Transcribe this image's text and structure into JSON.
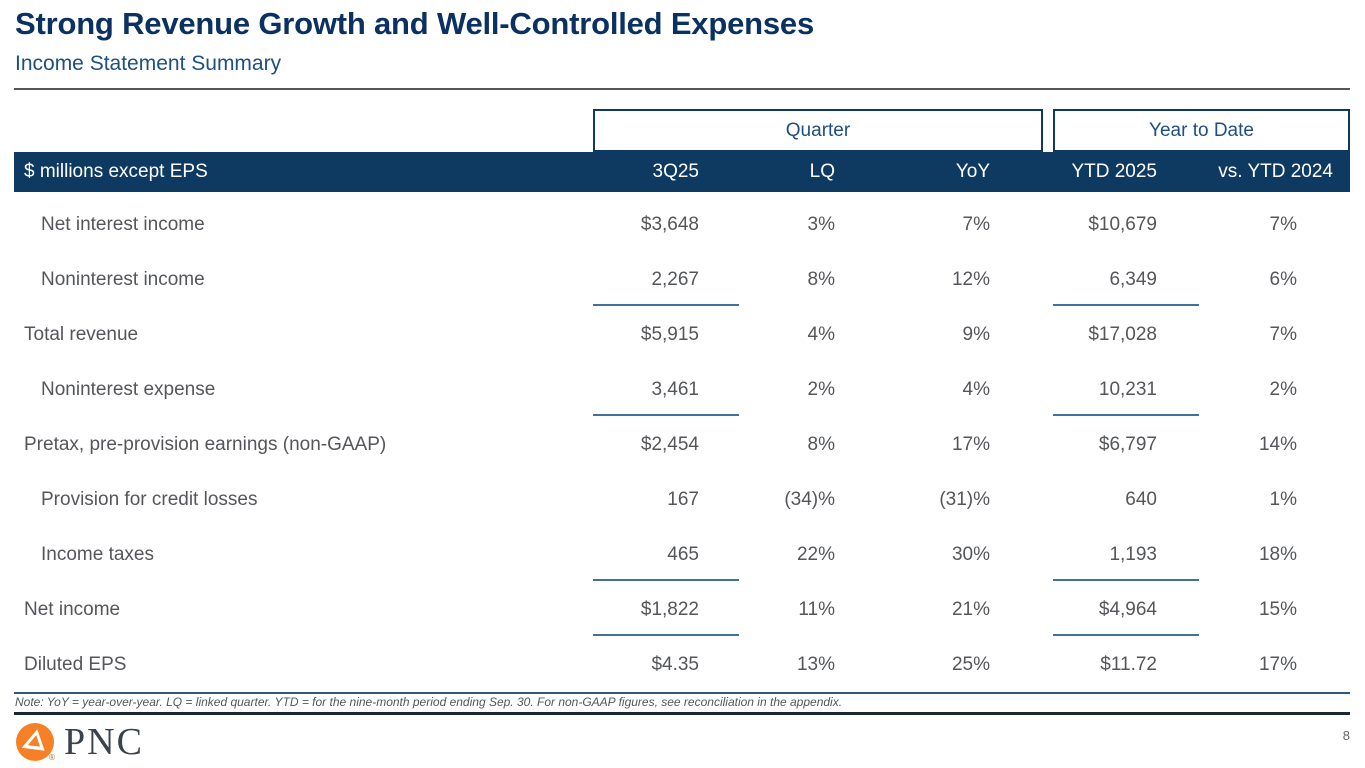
{
  "slide": {
    "title": "Strong Revenue Growth and Well-Controlled Expenses",
    "subtitle": "Income Statement Summary",
    "note": "Note: YoY = year-over-year.  LQ = linked quarter. YTD = for the nine-month period ending Sep. 30. For non-GAAP figures, see reconciliation in the appendix.",
    "page_number": "8",
    "logo": {
      "brand": "PNC",
      "registered_mark": "®"
    }
  },
  "table": {
    "group_headers": [
      {
        "label": "Quarter"
      },
      {
        "label": "Year to Date"
      }
    ],
    "header": {
      "label_col": "$ millions except EPS",
      "columns": [
        "3Q25",
        "LQ",
        "YoY",
        "YTD 2025",
        "vs. YTD 2024"
      ]
    },
    "rows": [
      {
        "label": "Net interest income",
        "indent": true,
        "rule_below": false,
        "values": [
          "$3,648",
          "3%",
          "7%",
          "$10,679",
          "7%"
        ]
      },
      {
        "label": "Noninterest income",
        "indent": true,
        "rule_below": true,
        "values": [
          "2,267",
          "8%",
          "12%",
          "6,349",
          "6%"
        ]
      },
      {
        "label": "Total revenue",
        "indent": false,
        "rule_below": false,
        "values": [
          "$5,915",
          "4%",
          "9%",
          "$17,028",
          "7%"
        ]
      },
      {
        "label": "Noninterest expense",
        "indent": true,
        "rule_below": true,
        "values": [
          "3,461",
          "2%",
          "4%",
          "10,231",
          "2%"
        ]
      },
      {
        "label": "Pretax, pre-provision earnings (non-GAAP)",
        "indent": false,
        "rule_below": false,
        "values": [
          "$2,454",
          "8%",
          "17%",
          "$6,797",
          "14%"
        ]
      },
      {
        "label": "Provision for credit losses",
        "indent": true,
        "rule_below": false,
        "values": [
          "167",
          "(34)%",
          "(31)%",
          "640",
          "1%"
        ]
      },
      {
        "label": "Income taxes",
        "indent": true,
        "rule_below": true,
        "values": [
          "465",
          "22%",
          "30%",
          "1,193",
          "18%"
        ]
      },
      {
        "label": "Net income",
        "indent": false,
        "rule_below": true,
        "values": [
          "$1,822",
          "11%",
          "21%",
          "$4,964",
          "15%"
        ]
      },
      {
        "label": "Diluted EPS",
        "indent": false,
        "rule_below": false,
        "values": [
          "$4.35",
          "13%",
          "25%",
          "$11.72",
          "17%"
        ]
      }
    ]
  },
  "colors": {
    "header_navy": "#0e3a62",
    "title_navy": "#0a3161",
    "subtitle_blue": "#1e4f82",
    "body_gray": "#54565a",
    "underline_steel_blue": "#41719c",
    "pnc_orange": "#F58025"
  }
}
